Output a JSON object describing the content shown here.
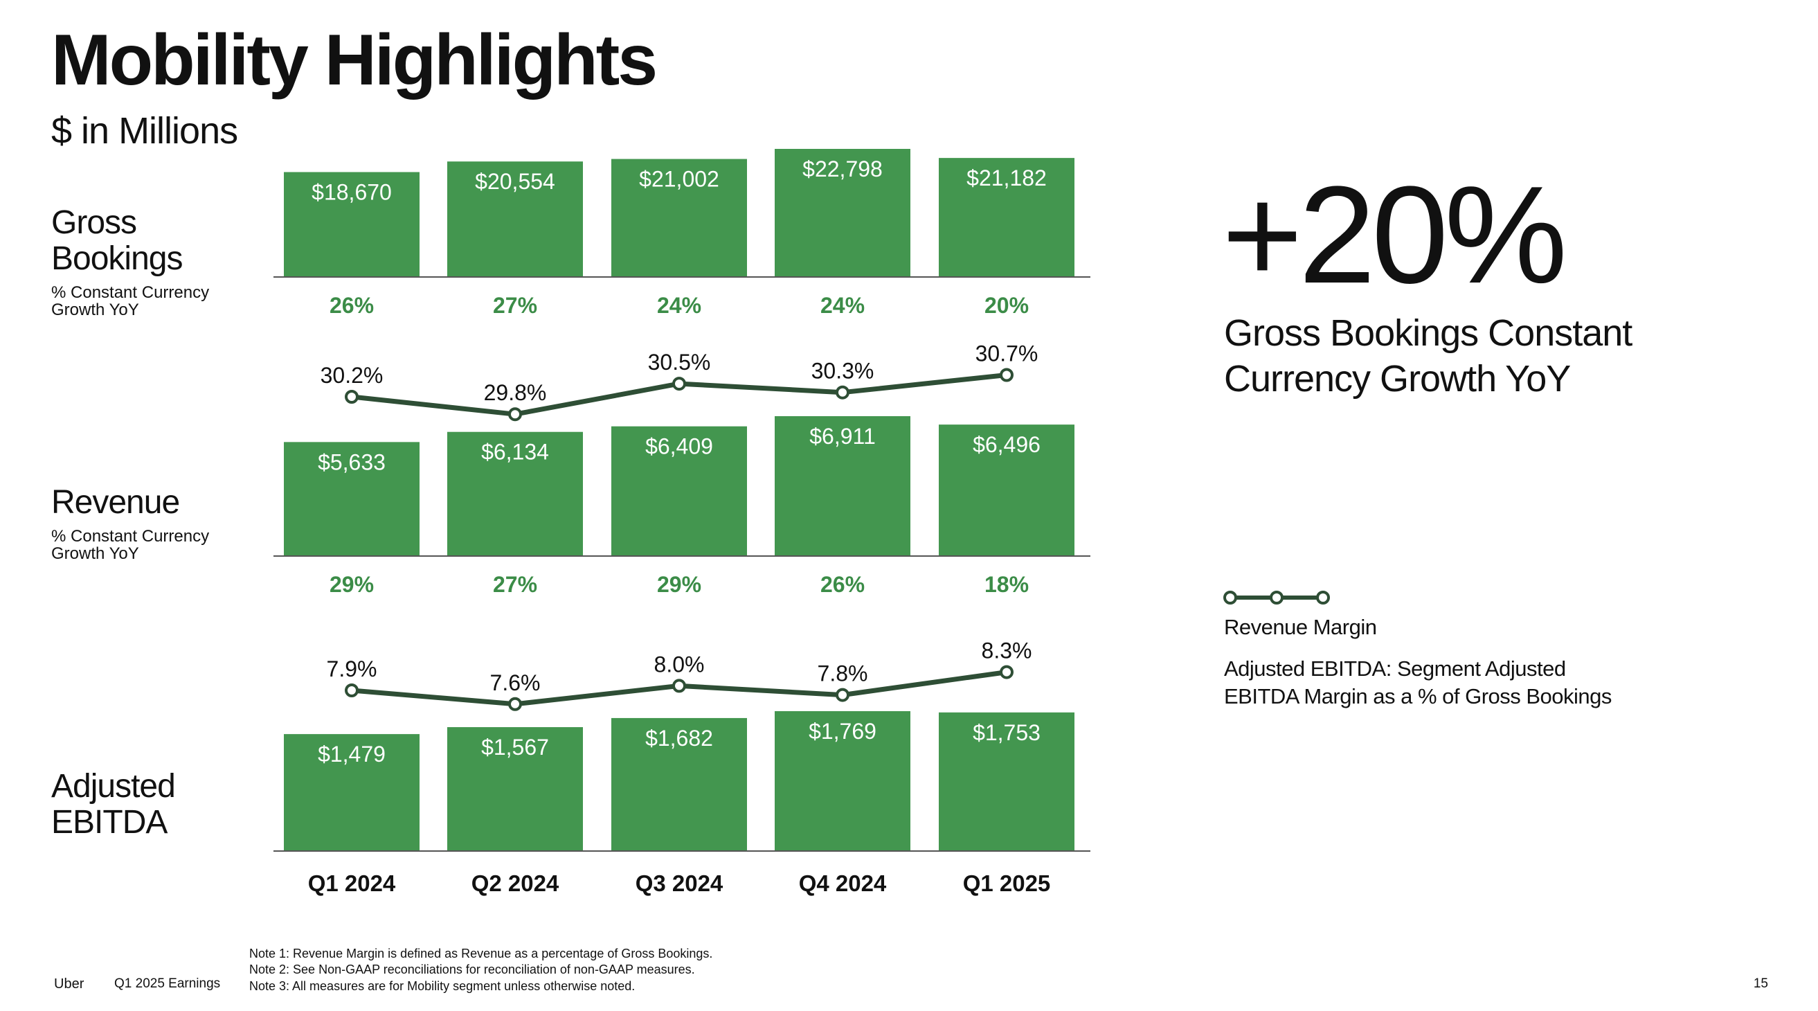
{
  "header": {
    "title": "Mobility Highlights",
    "subtitle": "$ in Millions"
  },
  "rows": {
    "gross_bookings": {
      "label_line1": "Gross",
      "label_line2": "Bookings",
      "sub_line1": "% Constant Currency",
      "sub_line2": "Growth YoY"
    },
    "revenue": {
      "label": "Revenue",
      "sub_line1": "% Constant Currency",
      "sub_line2": "Growth YoY"
    },
    "adjusted_ebitda": {
      "label_line1": "Adjusted",
      "label_line2": "EBITDA"
    }
  },
  "highlight": {
    "value": "+20%",
    "caption_line1": "Gross Bookings Constant",
    "caption_line2": "Currency Growth YoY"
  },
  "legend": {
    "label": "Revenue Margin",
    "note_line1": "Adjusted EBITDA: Segment Adjusted",
    "note_line2": "EBITDA Margin as a % of Gross Bookings"
  },
  "footer": {
    "brand": "Uber",
    "deck": "Q1 2025 Earnings",
    "notes": [
      "Note 1: Revenue Margin is defined as Revenue as a percentage of Gross Bookings.",
      "Note 2: See Non-GAAP reconciliations for reconciliation of non-GAAP measures.",
      "Note 3: All measures are for Mobility segment unless otherwise noted."
    ],
    "page_number": "15"
  },
  "colors": {
    "bar": "#43964f",
    "line": "#2e4e35",
    "growth_text": "#3b8c47",
    "text": "#111111"
  },
  "chart_data": [
    {
      "type": "bar",
      "name": "Gross Bookings",
      "categories": [
        "Q1 2024",
        "Q2 2024",
        "Q3 2024",
        "Q4 2024",
        "Q1 2025"
      ],
      "values": [
        18670,
        20554,
        21002,
        22798,
        21182
      ],
      "value_labels": [
        "$18,670",
        "$20,554",
        "$21,002",
        "$22,798",
        "$21,182"
      ],
      "growth_labels": [
        "26%",
        "27%",
        "24%",
        "24%",
        "20%"
      ]
    },
    {
      "type": "line",
      "name": "Revenue Margin",
      "categories": [
        "Q1 2024",
        "Q2 2024",
        "Q3 2024",
        "Q4 2024",
        "Q1 2025"
      ],
      "values": [
        30.2,
        29.8,
        30.5,
        30.3,
        30.7
      ],
      "value_labels": [
        "30.2%",
        "29.8%",
        "30.5%",
        "30.3%",
        "30.7%"
      ]
    },
    {
      "type": "bar",
      "name": "Revenue",
      "categories": [
        "Q1 2024",
        "Q2 2024",
        "Q3 2024",
        "Q4 2024",
        "Q1 2025"
      ],
      "values": [
        5633,
        6134,
        6409,
        6911,
        6496
      ],
      "value_labels": [
        "$5,633",
        "$6,134",
        "$6,409",
        "$6,911",
        "$6,496"
      ],
      "growth_labels": [
        "29%",
        "27%",
        "29%",
        "26%",
        "18%"
      ]
    },
    {
      "type": "line",
      "name": "Adjusted EBITDA Margin",
      "categories": [
        "Q1 2024",
        "Q2 2024",
        "Q3 2024",
        "Q4 2024",
        "Q1 2025"
      ],
      "values": [
        7.9,
        7.6,
        8.0,
        7.8,
        8.3
      ],
      "value_labels": [
        "7.9%",
        "7.6%",
        "8.0%",
        "7.8%",
        "8.3%"
      ]
    },
    {
      "type": "bar",
      "name": "Adjusted EBITDA",
      "categories": [
        "Q1 2024",
        "Q2 2024",
        "Q3 2024",
        "Q4 2024",
        "Q1 2025"
      ],
      "values": [
        1479,
        1567,
        1682,
        1769,
        1753
      ],
      "value_labels": [
        "$1,479",
        "$1,567",
        "$1,682",
        "$1,769",
        "$1,753"
      ],
      "category_labels": [
        "Q1 2024",
        "Q2 2024",
        "Q3 2024",
        "Q4 2024",
        "Q1 2025"
      ]
    }
  ]
}
